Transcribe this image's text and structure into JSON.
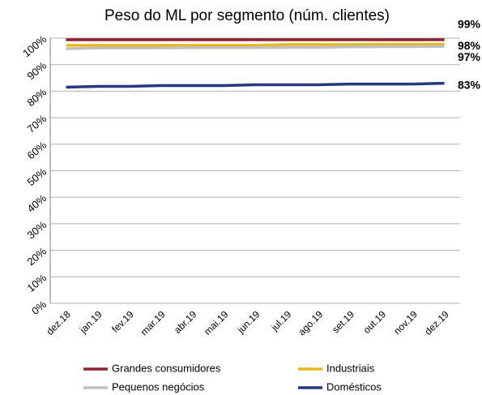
{
  "chart_data": {
    "type": "line",
    "title": "Peso do ML por segmento (núm. clientes)",
    "categories": [
      "dez.18",
      "jan.19",
      "fev.19",
      "mar.19",
      "abr.19",
      "mai.19",
      "jun.19",
      "jul.19",
      "ago.19",
      "set.19",
      "out.19",
      "nov.19",
      "dez.19"
    ],
    "ylim": [
      0,
      100
    ],
    "yticks": [
      {
        "value": 0,
        "label": "0%"
      },
      {
        "value": 10,
        "label": "10%"
      },
      {
        "value": 20,
        "label": "20%"
      },
      {
        "value": 30,
        "label": "30%"
      },
      {
        "value": 40,
        "label": "40%"
      },
      {
        "value": 50,
        "label": "50%"
      },
      {
        "value": 60,
        "label": "60%"
      },
      {
        "value": 70,
        "label": "70%"
      },
      {
        "value": 80,
        "label": "80%"
      },
      {
        "value": 90,
        "label": "90%"
      },
      {
        "value": 100,
        "label": "100%"
      }
    ],
    "grid": true,
    "series": [
      {
        "name": "Grandes consumidores",
        "color": "#8b2331",
        "values": [
          99.4,
          99.4,
          99.4,
          99.4,
          99.4,
          99.4,
          99.4,
          99.4,
          99.4,
          99.4,
          99.4,
          99.4,
          99.4
        ],
        "value_labels": [
          null,
          null,
          null,
          null,
          null,
          null,
          null,
          null,
          null,
          null,
          null,
          null,
          "99%"
        ]
      },
      {
        "name": "Industriais",
        "color": "#e8b820",
        "values": [
          97.3,
          97.3,
          97.3,
          97.3,
          97.3,
          97.3,
          97.3,
          97.6,
          97.6,
          97.6,
          97.7,
          97.7,
          97.7
        ],
        "value_labels": [
          null,
          null,
          null,
          null,
          null,
          null,
          null,
          null,
          null,
          null,
          null,
          null,
          "98%"
        ]
      },
      {
        "name": "Pequenos negócios",
        "color": "#c0c0c0",
        "values": [
          96.0,
          96.3,
          96.3,
          96.3,
          96.4,
          96.4,
          96.4,
          96.5,
          96.5,
          96.7,
          96.8,
          96.8,
          96.9
        ],
        "value_labels": [
          null,
          null,
          null,
          null,
          null,
          null,
          null,
          null,
          null,
          null,
          null,
          null,
          "97%"
        ]
      },
      {
        "name": "Domésticos",
        "color": "#24397f",
        "values": [
          81.5,
          81.8,
          81.8,
          82.1,
          82.1,
          82.1,
          82.4,
          82.4,
          82.4,
          82.7,
          82.7,
          82.7,
          83.0
        ],
        "value_labels": [
          null,
          null,
          null,
          null,
          null,
          null,
          null,
          null,
          null,
          null,
          null,
          null,
          "83%"
        ]
      }
    ]
  }
}
